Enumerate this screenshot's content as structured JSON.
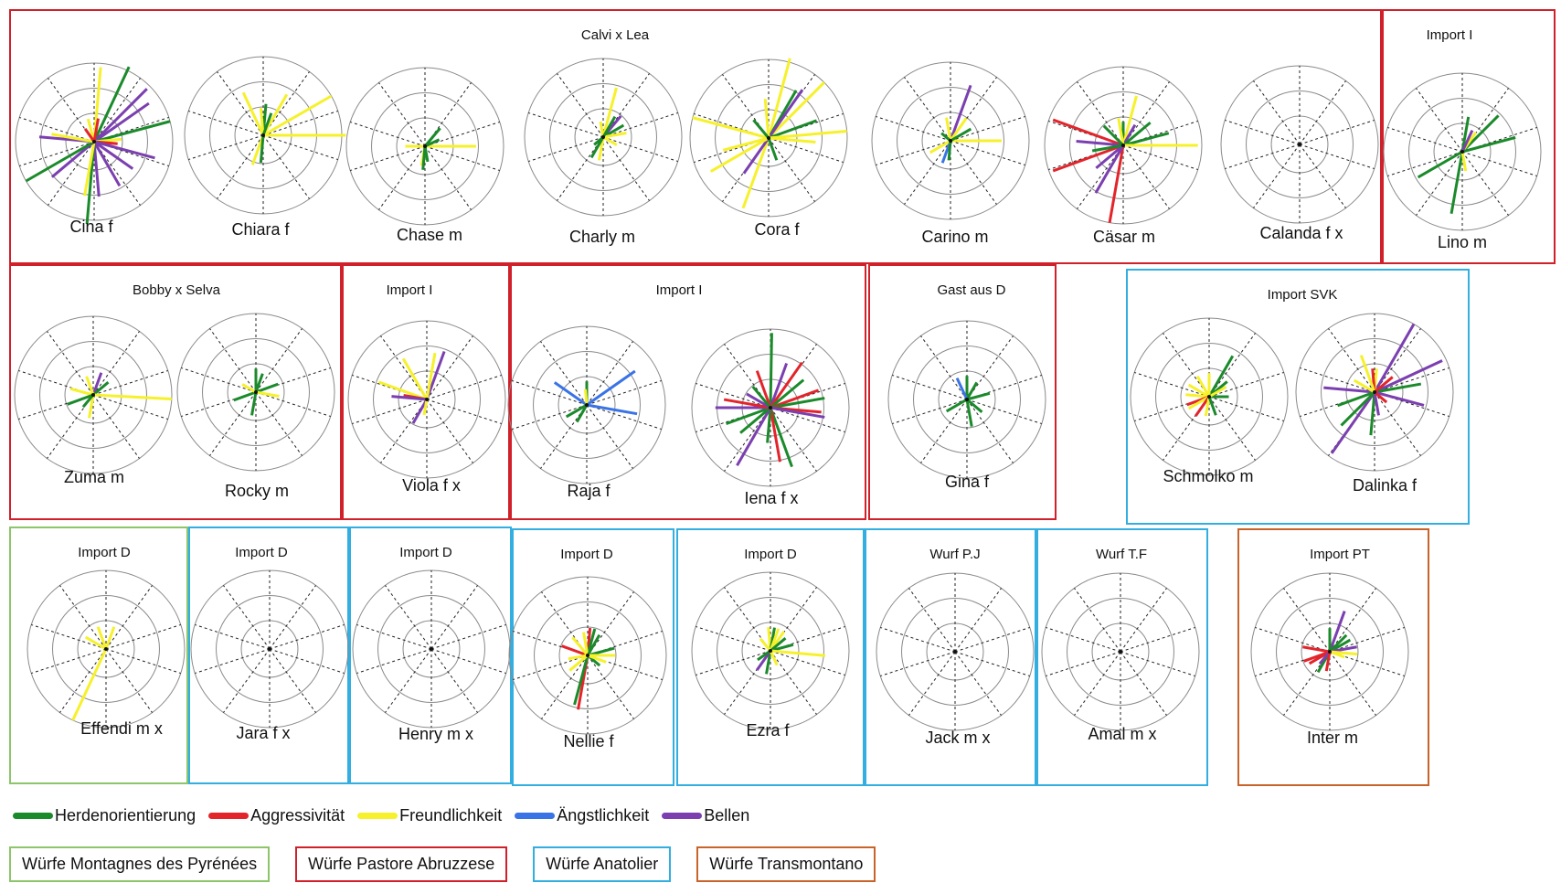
{
  "traits": [
    {
      "name": "Herdenorientierung",
      "color": "#1a8a2a"
    },
    {
      "name": "Aggressivität",
      "color": "#e3242b"
    },
    {
      "name": "Freundlichkeit",
      "color": "#f6f12a"
    },
    {
      "name": "Ängstlichkeit",
      "color": "#3a73e6"
    },
    {
      "name": "Bellen",
      "color": "#7b3fb0"
    }
  ],
  "breeds": [
    {
      "label": "Würfe Montagnes des Pyrénées",
      "color": "#8cc56a"
    },
    {
      "label": "Würfe Pastore Abruzzese",
      "color": "#d0202a"
    },
    {
      "label": "Würfe Anatolier",
      "color": "#33aee0"
    },
    {
      "label": "Würfe Transmontano",
      "color": "#c8632a"
    }
  ],
  "groups": [
    {
      "title": "Calvi x Lea",
      "color": "red"
    },
    {
      "title": "Import I",
      "color": "red"
    },
    {
      "title": "Bobby x Selva",
      "color": "red"
    },
    {
      "title": "Import I",
      "color": "red"
    },
    {
      "title": "Import I",
      "color": "red"
    },
    {
      "title": "Gast aus D",
      "color": "red"
    },
    {
      "title": "Import SVK",
      "color": "blue"
    },
    {
      "title": "Import D",
      "color": "green"
    },
    {
      "title": "Import D",
      "color": "blue"
    },
    {
      "title": "Import D",
      "color": "blue"
    },
    {
      "title": "Import D",
      "color": "blue"
    },
    {
      "title": "Import D",
      "color": "blue"
    },
    {
      "title": "Wurf  P.J",
      "color": "blue"
    },
    {
      "title": "Wurf  T.F",
      "color": "blue"
    },
    {
      "title": "Import PT",
      "color": "orange"
    }
  ],
  "dogs": [
    {
      "label": "Cina f",
      "rays": [
        [
          85,
          2,
          0.95
        ],
        [
          65,
          0,
          1.05
        ],
        [
          45,
          4,
          0.95
        ],
        [
          35,
          4,
          0.85
        ],
        [
          15,
          0,
          1.0
        ],
        [
          5,
          2,
          0.35
        ],
        [
          -5,
          1,
          0.3
        ],
        [
          -15,
          4,
          0.8
        ],
        [
          -35,
          4,
          0.6
        ],
        [
          -60,
          4,
          0.65
        ],
        [
          -85,
          4,
          0.7
        ],
        [
          -95,
          0,
          1.05
        ],
        [
          -100,
          2,
          0.7
        ],
        [
          -140,
          4,
          0.7
        ],
        [
          -150,
          0,
          1.0
        ],
        [
          175,
          4,
          0.7
        ],
        [
          170,
          2,
          0.55
        ],
        [
          105,
          2,
          0.3
        ],
        [
          125,
          1,
          0.2
        ],
        [
          80,
          1,
          0.3
        ]
      ]
    },
    {
      "label": "Chiara f",
      "rays": [
        [
          0,
          2,
          1.05
        ],
        [
          30,
          2,
          1.0
        ],
        [
          60,
          2,
          0.6
        ],
        [
          115,
          2,
          0.6
        ],
        [
          85,
          0,
          0.4
        ],
        [
          95,
          2,
          0.35
        ],
        [
          -110,
          2,
          0.4
        ],
        [
          -95,
          0,
          0.35
        ],
        [
          70,
          0,
          0.3
        ]
      ]
    },
    {
      "label": "Chase m",
      "rays": [
        [
          0,
          2,
          0.65
        ],
        [
          50,
          0,
          0.3
        ],
        [
          25,
          0,
          0.2
        ],
        [
          180,
          2,
          0.25
        ],
        [
          -100,
          2,
          0.25
        ],
        [
          -95,
          0,
          0.3
        ],
        [
          -80,
          0,
          0.2
        ]
      ]
    },
    {
      "label": "Charly m",
      "rays": [
        [
          75,
          2,
          0.65
        ],
        [
          50,
          4,
          0.35
        ],
        [
          30,
          0,
          0.3
        ],
        [
          10,
          2,
          0.3
        ],
        [
          -30,
          2,
          0.2
        ],
        [
          -100,
          2,
          0.3
        ],
        [
          -120,
          0,
          0.3
        ],
        [
          -140,
          0,
          0.15
        ],
        [
          100,
          2,
          0.2
        ],
        [
          60,
          0,
          0.3
        ]
      ]
    },
    {
      "label": "Cora f",
      "rays": [
        [
          75,
          2,
          1.05
        ],
        [
          45,
          2,
          1.0
        ],
        [
          60,
          0,
          0.7
        ],
        [
          55,
          4,
          0.75
        ],
        [
          20,
          0,
          0.65
        ],
        [
          5,
          2,
          1.0
        ],
        [
          -5,
          2,
          0.6
        ],
        [
          -110,
          2,
          0.95
        ],
        [
          -125,
          4,
          0.55
        ],
        [
          -150,
          2,
          0.85
        ],
        [
          -165,
          2,
          0.6
        ],
        [
          165,
          2,
          1.0
        ],
        [
          95,
          2,
          0.5
        ],
        [
          130,
          0,
          0.3
        ],
        [
          -70,
          0,
          0.3
        ]
      ]
    },
    {
      "label": "Carino m",
      "rays": [
        [
          70,
          4,
          0.75
        ],
        [
          55,
          2,
          0.35
        ],
        [
          0,
          2,
          0.65
        ],
        [
          30,
          0,
          0.3
        ],
        [
          -110,
          3,
          0.3
        ],
        [
          -150,
          2,
          0.3
        ],
        [
          -95,
          0,
          0.25
        ],
        [
          100,
          2,
          0.3
        ],
        [
          140,
          0,
          0.15
        ]
      ]
    },
    {
      "label": "Cäsar m",
      "rays": [
        [
          90,
          0,
          0.3
        ],
        [
          75,
          2,
          0.65
        ],
        [
          60,
          4,
          0.3
        ],
        [
          40,
          0,
          0.45
        ],
        [
          15,
          0,
          0.6
        ],
        [
          0,
          2,
          0.95
        ],
        [
          160,
          1,
          0.95
        ],
        [
          -160,
          1,
          0.95
        ],
        [
          -100,
          1,
          1.0
        ],
        [
          -120,
          4,
          0.7
        ],
        [
          -140,
          4,
          0.45
        ],
        [
          175,
          4,
          0.6
        ],
        [
          -170,
          0,
          0.4
        ],
        [
          100,
          2,
          0.35
        ],
        [
          135,
          0,
          0.35
        ]
      ]
    },
    {
      "label": "Calanda f x",
      "rays": []
    },
    {
      "label": "Lino m",
      "rays": [
        [
          80,
          0,
          0.45
        ],
        [
          45,
          0,
          0.65
        ],
        [
          55,
          2,
          0.3
        ],
        [
          15,
          0,
          0.7
        ],
        [
          65,
          4,
          0.3
        ],
        [
          -100,
          0,
          0.8
        ],
        [
          -150,
          0,
          0.65
        ],
        [
          -80,
          2,
          0.25
        ]
      ]
    },
    {
      "label": "Zuma m",
      "rays": [
        [
          70,
          4,
          0.3
        ],
        [
          40,
          0,
          0.25
        ],
        [
          -3,
          2,
          1.0
        ],
        [
          110,
          2,
          0.25
        ],
        [
          165,
          2,
          0.3
        ],
        [
          -100,
          2,
          0.3
        ],
        [
          -160,
          0,
          0.35
        ],
        [
          -130,
          0,
          0.2
        ]
      ]
    },
    {
      "label": "Rocky m",
      "rays": [
        [
          90,
          0,
          0.3
        ],
        [
          70,
          0,
          0.25
        ],
        [
          20,
          0,
          0.3
        ],
        [
          -10,
          2,
          0.3
        ],
        [
          -100,
          0,
          0.3
        ],
        [
          -160,
          0,
          0.3
        ],
        [
          150,
          2,
          0.2
        ]
      ]
    },
    {
      "label": "Viola f x",
      "rays": [
        [
          70,
          4,
          0.65
        ],
        [
          80,
          2,
          0.6
        ],
        [
          120,
          2,
          0.6
        ],
        [
          160,
          2,
          0.65
        ],
        [
          170,
          1,
          0.3
        ],
        [
          175,
          4,
          0.45
        ],
        [
          -120,
          4,
          0.35
        ],
        [
          -100,
          2,
          0.2
        ]
      ]
    },
    {
      "label": "Raja f",
      "rays": [
        [
          90,
          0,
          0.3
        ],
        [
          35,
          3,
          0.75
        ],
        [
          -10,
          3,
          0.65
        ],
        [
          145,
          3,
          0.5
        ],
        [
          -150,
          0,
          0.3
        ],
        [
          -120,
          0,
          0.25
        ],
        [
          95,
          2,
          0.2
        ]
      ]
    },
    {
      "label": "Iena f x",
      "rays": [
        [
          89,
          0,
          0.95
        ],
        [
          70,
          4,
          0.6
        ],
        [
          55,
          1,
          0.7
        ],
        [
          40,
          0,
          0.55
        ],
        [
          20,
          1,
          0.65
        ],
        [
          10,
          0,
          0.7
        ],
        [
          -5,
          1,
          0.65
        ],
        [
          -10,
          4,
          0.7
        ],
        [
          -70,
          0,
          0.8
        ],
        [
          -80,
          1,
          0.7
        ],
        [
          -95,
          0,
          0.45
        ],
        [
          -120,
          4,
          0.85
        ],
        [
          -140,
          0,
          0.5
        ],
        [
          -160,
          0,
          0.6
        ],
        [
          180,
          4,
          0.7
        ],
        [
          170,
          1,
          0.6
        ],
        [
          150,
          4,
          0.35
        ],
        [
          110,
          1,
          0.5
        ],
        [
          130,
          0,
          0.35
        ]
      ]
    },
    {
      "label": "Gina f",
      "rays": [
        [
          90,
          0,
          0.3
        ],
        [
          60,
          0,
          0.25
        ],
        [
          115,
          3,
          0.3
        ],
        [
          15,
          0,
          0.3
        ],
        [
          -80,
          0,
          0.35
        ],
        [
          -150,
          0,
          0.3
        ],
        [
          -40,
          0,
          0.25
        ]
      ]
    },
    {
      "label": "Schmolko m",
      "rays": [
        [
          60,
          0,
          0.6
        ],
        [
          90,
          2,
          0.3
        ],
        [
          40,
          0,
          0.3
        ],
        [
          120,
          2,
          0.3
        ],
        [
          150,
          2,
          0.3
        ],
        [
          175,
          2,
          0.3
        ],
        [
          -160,
          1,
          0.3
        ],
        [
          -150,
          2,
          0.3
        ],
        [
          -125,
          1,
          0.3
        ],
        [
          -100,
          2,
          0.25
        ],
        [
          -70,
          0,
          0.25
        ],
        [
          0,
          0,
          0.25
        ],
        [
          30,
          2,
          0.25
        ]
      ]
    },
    {
      "label": "Dalinka f",
      "rays": [
        [
          60,
          4,
          1.0
        ],
        [
          25,
          4,
          0.95
        ],
        [
          10,
          0,
          0.6
        ],
        [
          -15,
          4,
          0.65
        ],
        [
          85,
          2,
          0.3
        ],
        [
          95,
          1,
          0.3
        ],
        [
          110,
          2,
          0.5
        ],
        [
          175,
          4,
          0.65
        ],
        [
          -125,
          4,
          0.95
        ],
        [
          -135,
          0,
          0.6
        ],
        [
          -95,
          0,
          0.55
        ],
        [
          -160,
          0,
          0.5
        ],
        [
          -80,
          4,
          0.3
        ],
        [
          150,
          2,
          0.3
        ],
        [
          40,
          1,
          0.3
        ],
        [
          -40,
          1,
          0.2
        ]
      ]
    },
    {
      "label": "Effendi m x",
      "rays": [
        [
          70,
          2,
          0.3
        ],
        [
          150,
          2,
          0.3
        ],
        [
          110,
          2,
          0.3
        ],
        [
          -115,
          2,
          1.0
        ]
      ]
    },
    {
      "label": "Jara f x",
      "rays": []
    },
    {
      "label": "Henry m x",
      "rays": []
    },
    {
      "label": "Nellie f",
      "rays": [
        [
          85,
          1,
          0.35
        ],
        [
          75,
          0,
          0.35
        ],
        [
          100,
          2,
          0.3
        ],
        [
          60,
          0,
          0.3
        ],
        [
          15,
          0,
          0.35
        ],
        [
          0,
          2,
          0.35
        ],
        [
          160,
          1,
          0.35
        ],
        [
          -100,
          1,
          0.7
        ],
        [
          -105,
          0,
          0.65
        ],
        [
          -140,
          2,
          0.3
        ],
        [
          -40,
          0,
          0.2
        ],
        [
          130,
          2,
          0.3
        ],
        [
          -20,
          2,
          0.25
        ],
        [
          -170,
          2,
          0.25
        ]
      ]
    },
    {
      "label": "Ezra f",
      "rays": [
        [
          95,
          2,
          0.3
        ],
        [
          80,
          0,
          0.3
        ],
        [
          70,
          2,
          0.3
        ],
        [
          55,
          2,
          0.3
        ],
        [
          40,
          0,
          0.25
        ],
        [
          15,
          0,
          0.3
        ],
        [
          -5,
          2,
          0.7
        ],
        [
          -100,
          0,
          0.3
        ],
        [
          -125,
          4,
          0.3
        ],
        [
          -145,
          0,
          0.2
        ],
        [
          -65,
          2,
          0.2
        ],
        [
          130,
          2,
          0.2
        ]
      ]
    },
    {
      "label": "Jack m x",
      "rays": []
    },
    {
      "label": "Amal m x",
      "rays": []
    },
    {
      "label": "Inter m",
      "rays": [
        [
          70,
          4,
          0.55
        ],
        [
          45,
          0,
          0.3
        ],
        [
          30,
          0,
          0.3
        ],
        [
          10,
          4,
          0.35
        ],
        [
          -5,
          2,
          0.35
        ],
        [
          -20,
          2,
          0.2
        ],
        [
          90,
          0,
          0.3
        ],
        [
          170,
          1,
          0.35
        ],
        [
          -160,
          1,
          0.35
        ],
        [
          -150,
          1,
          0.3
        ],
        [
          -120,
          0,
          0.3
        ],
        [
          -130,
          4,
          0.2
        ],
        [
          -100,
          1,
          0.25
        ]
      ]
    }
  ]
}
